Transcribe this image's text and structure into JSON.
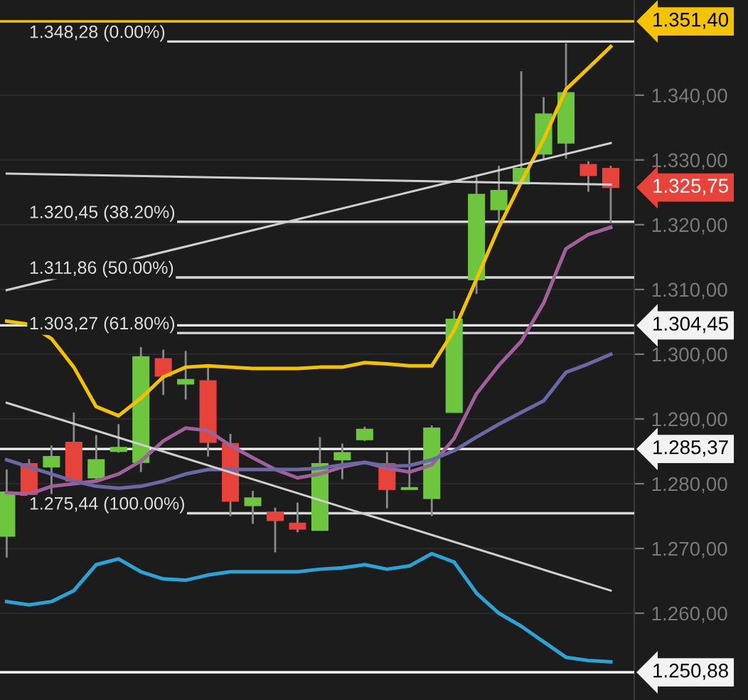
{
  "chart_data": {
    "type": "candlestick",
    "categories": [
      null,
      null,
      null,
      null,
      null,
      null,
      null,
      null,
      null,
      null,
      null,
      null,
      null,
      null,
      null,
      null,
      null,
      null,
      null,
      null,
      null,
      null,
      null,
      null,
      null,
      null,
      null,
      null
    ],
    "ohlc": [
      [
        1271.9,
        1282.2,
        1268.6,
        1278.7
      ],
      [
        1283.1,
        1283.8,
        1277.8,
        1278.2
      ],
      [
        1282.6,
        1285.9,
        1278.4,
        1284.2
      ],
      [
        1286.4,
        1291.0,
        1280.0,
        1280.4
      ],
      [
        1280.9,
        1287.5,
        1280.4,
        1283.7
      ],
      [
        1285.0,
        1289.2,
        1284.8,
        1285.6
      ],
      [
        1283.3,
        1301.1,
        1281.8,
        1299.6
      ],
      [
        1299.3,
        1300.7,
        1293.7,
        1296.6
      ],
      [
        1295.4,
        1300.5,
        1293.0,
        1296.1
      ],
      [
        1295.9,
        1298.0,
        1284.2,
        1286.4
      ],
      [
        1286.2,
        1287.7,
        1275.0,
        1277.3
      ],
      [
        1276.6,
        1278.9,
        1273.8,
        1277.8
      ],
      [
        1275.6,
        1276.3,
        1269.4,
        1274.3
      ],
      [
        1273.9,
        1277.1,
        1272.5,
        1273.0
      ],
      [
        1272.8,
        1287.2,
        1272.8,
        1283.1
      ],
      [
        1283.7,
        1286.2,
        1280.7,
        1284.8
      ],
      [
        1286.8,
        1288.8,
        1286.6,
        1288.4
      ],
      [
        1283.1,
        1284.9,
        1276.2,
        1279.1
      ],
      [
        1279.1,
        1285.3,
        1279.1,
        1279.4
      ],
      [
        1277.7,
        1289.0,
        1275.0,
        1288.6
      ],
      [
        1291.0,
        1306.7,
        1291.0,
        1305.4
      ],
      [
        1311.5,
        1327.7,
        1309.3,
        1324.7
      ],
      [
        1322.3,
        1329.1,
        1320.3,
        1325.3
      ],
      [
        1326.3,
        1343.7,
        1326.3,
        1328.7
      ],
      [
        1330.9,
        1339.7,
        1330.2,
        1337.1
      ],
      [
        1332.6,
        1348.0,
        1330.2,
        1340.4
      ],
      [
        1329.3,
        1329.8,
        1325.1,
        1327.6
      ],
      [
        1328.7,
        1329.1,
        1320.3,
        1325.75
      ]
    ],
    "colors": [
      "#6ec63f",
      "#e8433b",
      "#6ec63f",
      "#e8433b",
      "#6ec63f",
      "#6ec63f",
      "#6ec63f",
      "#e8433b",
      "#6ec63f",
      "#e8433b",
      "#e8433b",
      "#6ec63f",
      "#e8433b",
      "#e8433b",
      "#6ec63f",
      "#6ec63f",
      "#6ec63f",
      "#e8433b",
      "#6ec63f",
      "#6ec63f",
      "#6ec63f",
      "#6ec63f",
      "#6ec63f",
      "#6ec63f",
      "#6ec63f",
      "#6ec63f",
      "#e8433b",
      "#e8433b"
    ],
    "series": [
      {
        "type": "line",
        "color": "#f2c200",
        "values": [
          1305.1,
          1304.6,
          1302.4,
          1298.0,
          1291.9,
          1290.5,
          1293.2,
          1296.5,
          1298.0,
          1298.2,
          1298.0,
          1297.8,
          1297.8,
          1297.8,
          1298.0,
          1298.0,
          1298.7,
          1298.5,
          1298.2,
          1298.2,
          1303.7,
          1311.6,
          1319.6,
          1326.6,
          1333.2,
          1340.9,
          1344.2,
          1347.5
        ]
      },
      {
        "type": "line",
        "color": "#2ba3d4",
        "values": [
          1261.8,
          1261.3,
          1261.8,
          1263.5,
          1267.5,
          1268.4,
          1266.4,
          1265.3,
          1265.1,
          1265.9,
          1266.4,
          1266.4,
          1266.4,
          1266.4,
          1266.8,
          1267.0,
          1267.5,
          1266.8,
          1267.3,
          1269.2,
          1267.9,
          1263.1,
          1260.0,
          1258.0,
          1255.6,
          1253.2,
          1252.7,
          1252.5
        ]
      },
      {
        "type": "line",
        "color": "#a0609c",
        "values": [
          1278.6,
          1278.4,
          1279.6,
          1280.0,
          1280.4,
          1281.5,
          1283.5,
          1286.6,
          1288.6,
          1288.2,
          1285.9,
          1284.0,
          1282.2,
          1280.9,
          1281.5,
          1282.6,
          1283.3,
          1282.4,
          1281.8,
          1282.9,
          1287.0,
          1293.9,
          1298.3,
          1302.0,
          1307.9,
          1316.3,
          1318.5,
          1319.6
        ]
      },
      {
        "type": "line",
        "color": "#6c68a4",
        "values": [
          1283.7,
          1282.6,
          1281.5,
          1280.4,
          1279.6,
          1279.3,
          1279.6,
          1280.4,
          1281.5,
          1282.2,
          1282.2,
          1282.2,
          1282.2,
          1282.2,
          1282.4,
          1282.9,
          1283.3,
          1282.7,
          1282.8,
          1283.7,
          1285.1,
          1287.2,
          1289.2,
          1291.0,
          1292.8,
          1297.2,
          1298.5,
          1300.0
        ]
      },
      {
        "type": "line",
        "color": "#cfcfcf",
        "values": [
          1327.9,
          null,
          null,
          null,
          null,
          null,
          null,
          null,
          null,
          null,
          null,
          null,
          null,
          null,
          null,
          null,
          null,
          null,
          null,
          null,
          null,
          null,
          null,
          null,
          null,
          null,
          null,
          1326.2
        ]
      },
      {
        "type": "line",
        "color": "#cfcfcf",
        "values": [
          1309.9,
          null,
          null,
          null,
          null,
          null,
          null,
          null,
          null,
          null,
          null,
          null,
          null,
          null,
          null,
          null,
          null,
          null,
          null,
          null,
          null,
          null,
          null,
          null,
          null,
          null,
          null,
          1332.6
        ]
      },
      {
        "type": "line",
        "color": "#cfcfcf",
        "values": [
          1292.5,
          null,
          null,
          null,
          null,
          null,
          null,
          null,
          null,
          null,
          null,
          null,
          null,
          null,
          null,
          null,
          null,
          null,
          null,
          null,
          null,
          null,
          null,
          null,
          null,
          null,
          null,
          1263.5
        ]
      }
    ],
    "ylim": [
      1246.6,
      1354.7
    ],
    "yticks": [
      {
        "value": 1260,
        "label": "1.260,00"
      },
      {
        "value": 1270,
        "label": "1.270,00"
      },
      {
        "value": 1280,
        "label": "1.280,00"
      },
      {
        "value": 1290,
        "label": "1.290,00"
      },
      {
        "value": 1300,
        "label": "1.300,00"
      },
      {
        "value": 1310,
        "label": "1.310,00"
      },
      {
        "value": 1320,
        "label": "1.320,00"
      },
      {
        "value": 1330,
        "label": "1.330,00"
      },
      {
        "value": 1340,
        "label": "1.340,00"
      }
    ],
    "tick_labels": "y",
    "grid": "y",
    "ref_lines": [
      {
        "axis": "y",
        "value": 1348.28,
        "label": "1.348,28 (0.00%)"
      },
      {
        "axis": "y",
        "value": 1320.45,
        "label": "1.320,45 (38.20%)"
      },
      {
        "axis": "y",
        "value": 1311.86,
        "label": "1.311,86 (50.00%)"
      },
      {
        "axis": "y",
        "value": 1303.27,
        "label": "1.303,27 (61.80%)"
      },
      {
        "axis": "y",
        "value": 1275.44,
        "label": "1.275,44 (100.00%)"
      },
      {
        "axis": "y",
        "value": 1351.4,
        "label": "1.351,40",
        "color": "#f5c400"
      },
      {
        "axis": "y",
        "value": 1304.45,
        "label": "1.304,45",
        "color": "#f2f2f2"
      },
      {
        "axis": "y",
        "value": 1285.37,
        "label": "1.285,37",
        "color": "#f2f2f2"
      },
      {
        "axis": "y",
        "value": 1250.88,
        "label": "1.250,88",
        "color": "#f2f2f2"
      }
    ],
    "annotations": [
      "1.325,75"
    ]
  }
}
